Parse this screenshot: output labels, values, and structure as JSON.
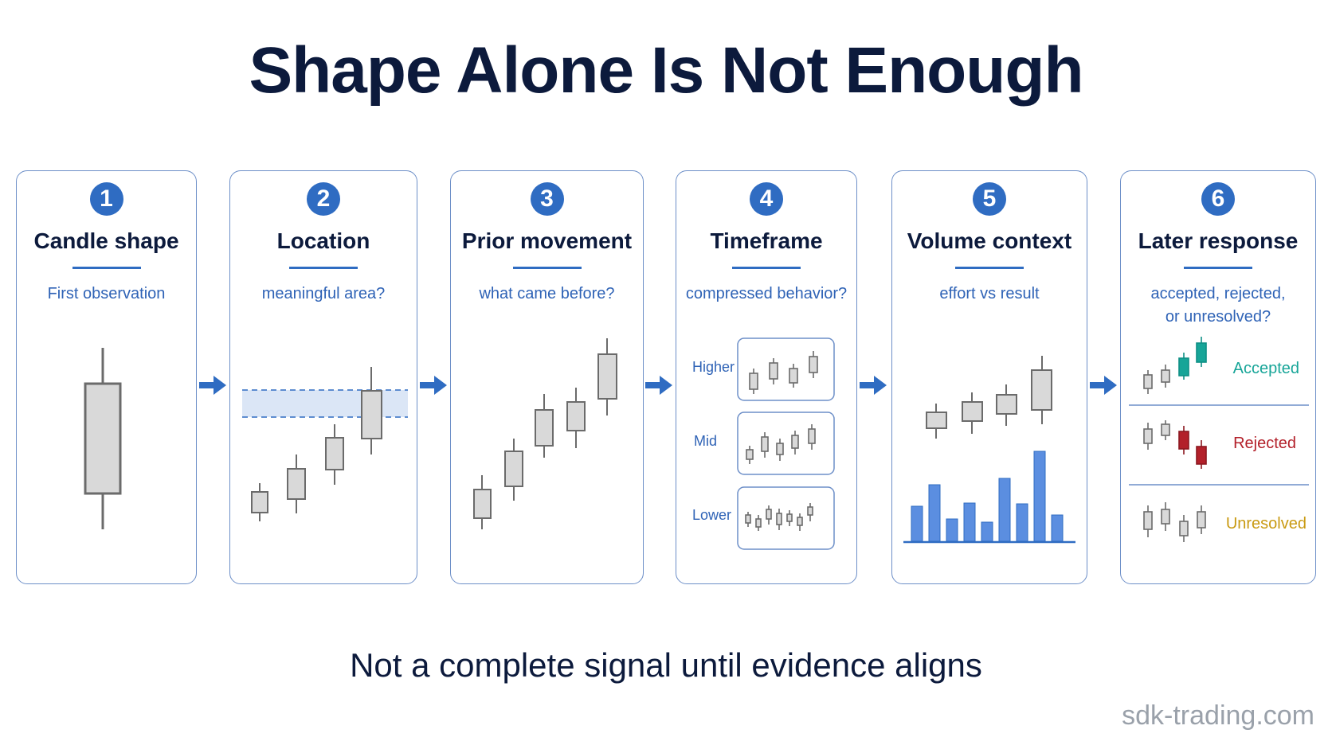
{
  "title": "Shape Alone Is Not Enough",
  "steps": [
    {
      "number": "1",
      "title": "Candle shape",
      "subtitle": "First observation"
    },
    {
      "number": "2",
      "title": "Location",
      "subtitle": "meaningful area?"
    },
    {
      "number": "3",
      "title": "Prior movement",
      "subtitle": "what came before?"
    },
    {
      "number": "4",
      "title": "Timeframe",
      "subtitle": "compressed behavior?",
      "timeframes": [
        "Higher",
        "Mid",
        "Lower"
      ]
    },
    {
      "number": "5",
      "title": "Volume context",
      "subtitle": "effort vs result"
    },
    {
      "number": "6",
      "title": "Later response",
      "subtitle": "accepted, rejected, or unresolved?",
      "outcomes": [
        "Accepted",
        "Rejected",
        "Unresolved"
      ]
    }
  ],
  "footer": "Not a complete signal until evidence aligns",
  "watermark": "sdk-trading.com",
  "colors": {
    "accent": "#2f6cc2",
    "card_border": "#6d8fc8",
    "subtitle": "#2f63b6",
    "candle_fill": "#d9d9d9",
    "candle_stroke": "#6b6b6b",
    "zone": "#dbe6f6",
    "volume": "#5b8ee0",
    "accepted": "#17a598",
    "rejected": "#b3202a",
    "unresolved": "#c99a12"
  }
}
